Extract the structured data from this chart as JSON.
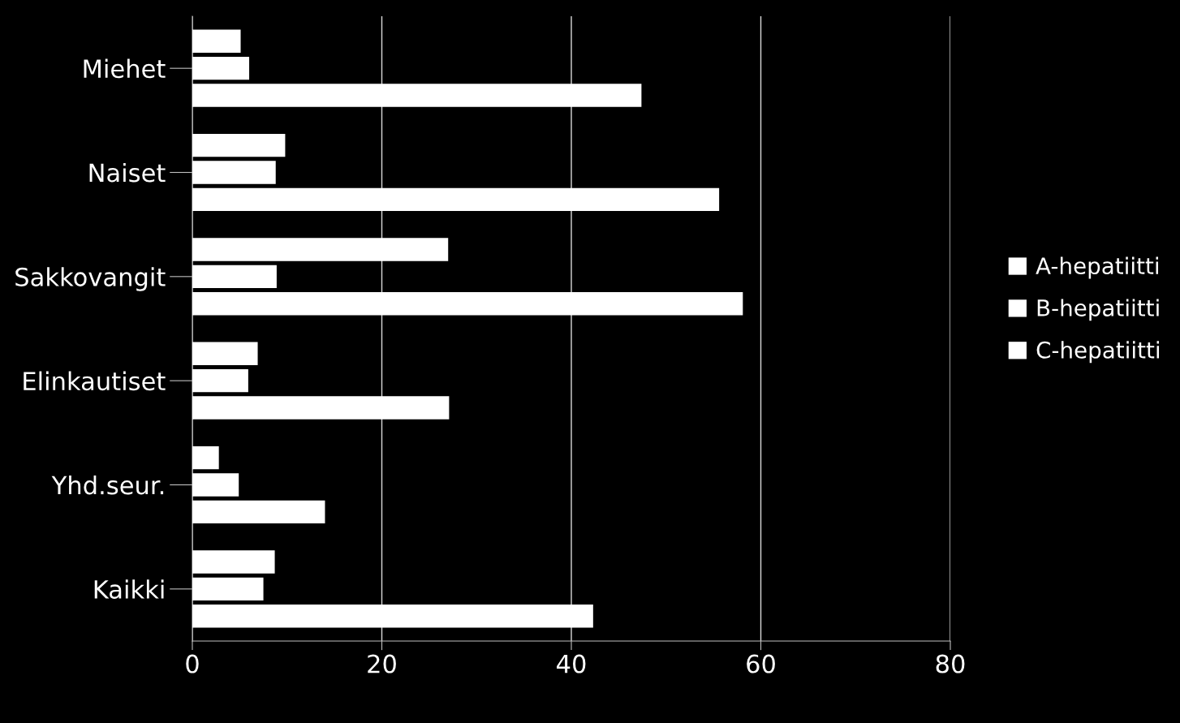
{
  "chart_data": {
    "type": "bar",
    "orientation": "horizontal",
    "categories": [
      "Miehet",
      "Naiset",
      "Sakkovangit",
      "Elinkautiset",
      "Yhd.seur.",
      "Kaikki"
    ],
    "series": [
      {
        "name": "A-hepatiitti",
        "color": "#ffffff",
        "values": [
          5.1,
          9.8,
          27.0,
          6.9,
          2.8,
          8.7
        ]
      },
      {
        "name": "B-hepatiitti",
        "color": "#ffffff",
        "values": [
          6.0,
          8.8,
          8.9,
          5.9,
          4.9,
          7.5
        ]
      },
      {
        "name": "C-hepatiitti",
        "color": "#ffffff",
        "values": [
          47.4,
          55.6,
          58.1,
          27.1,
          14.0,
          42.3
        ]
      }
    ],
    "xlim": [
      0,
      80
    ],
    "xticks": [
      0,
      20,
      40,
      60,
      80
    ],
    "grid": "x",
    "legend": "right"
  }
}
